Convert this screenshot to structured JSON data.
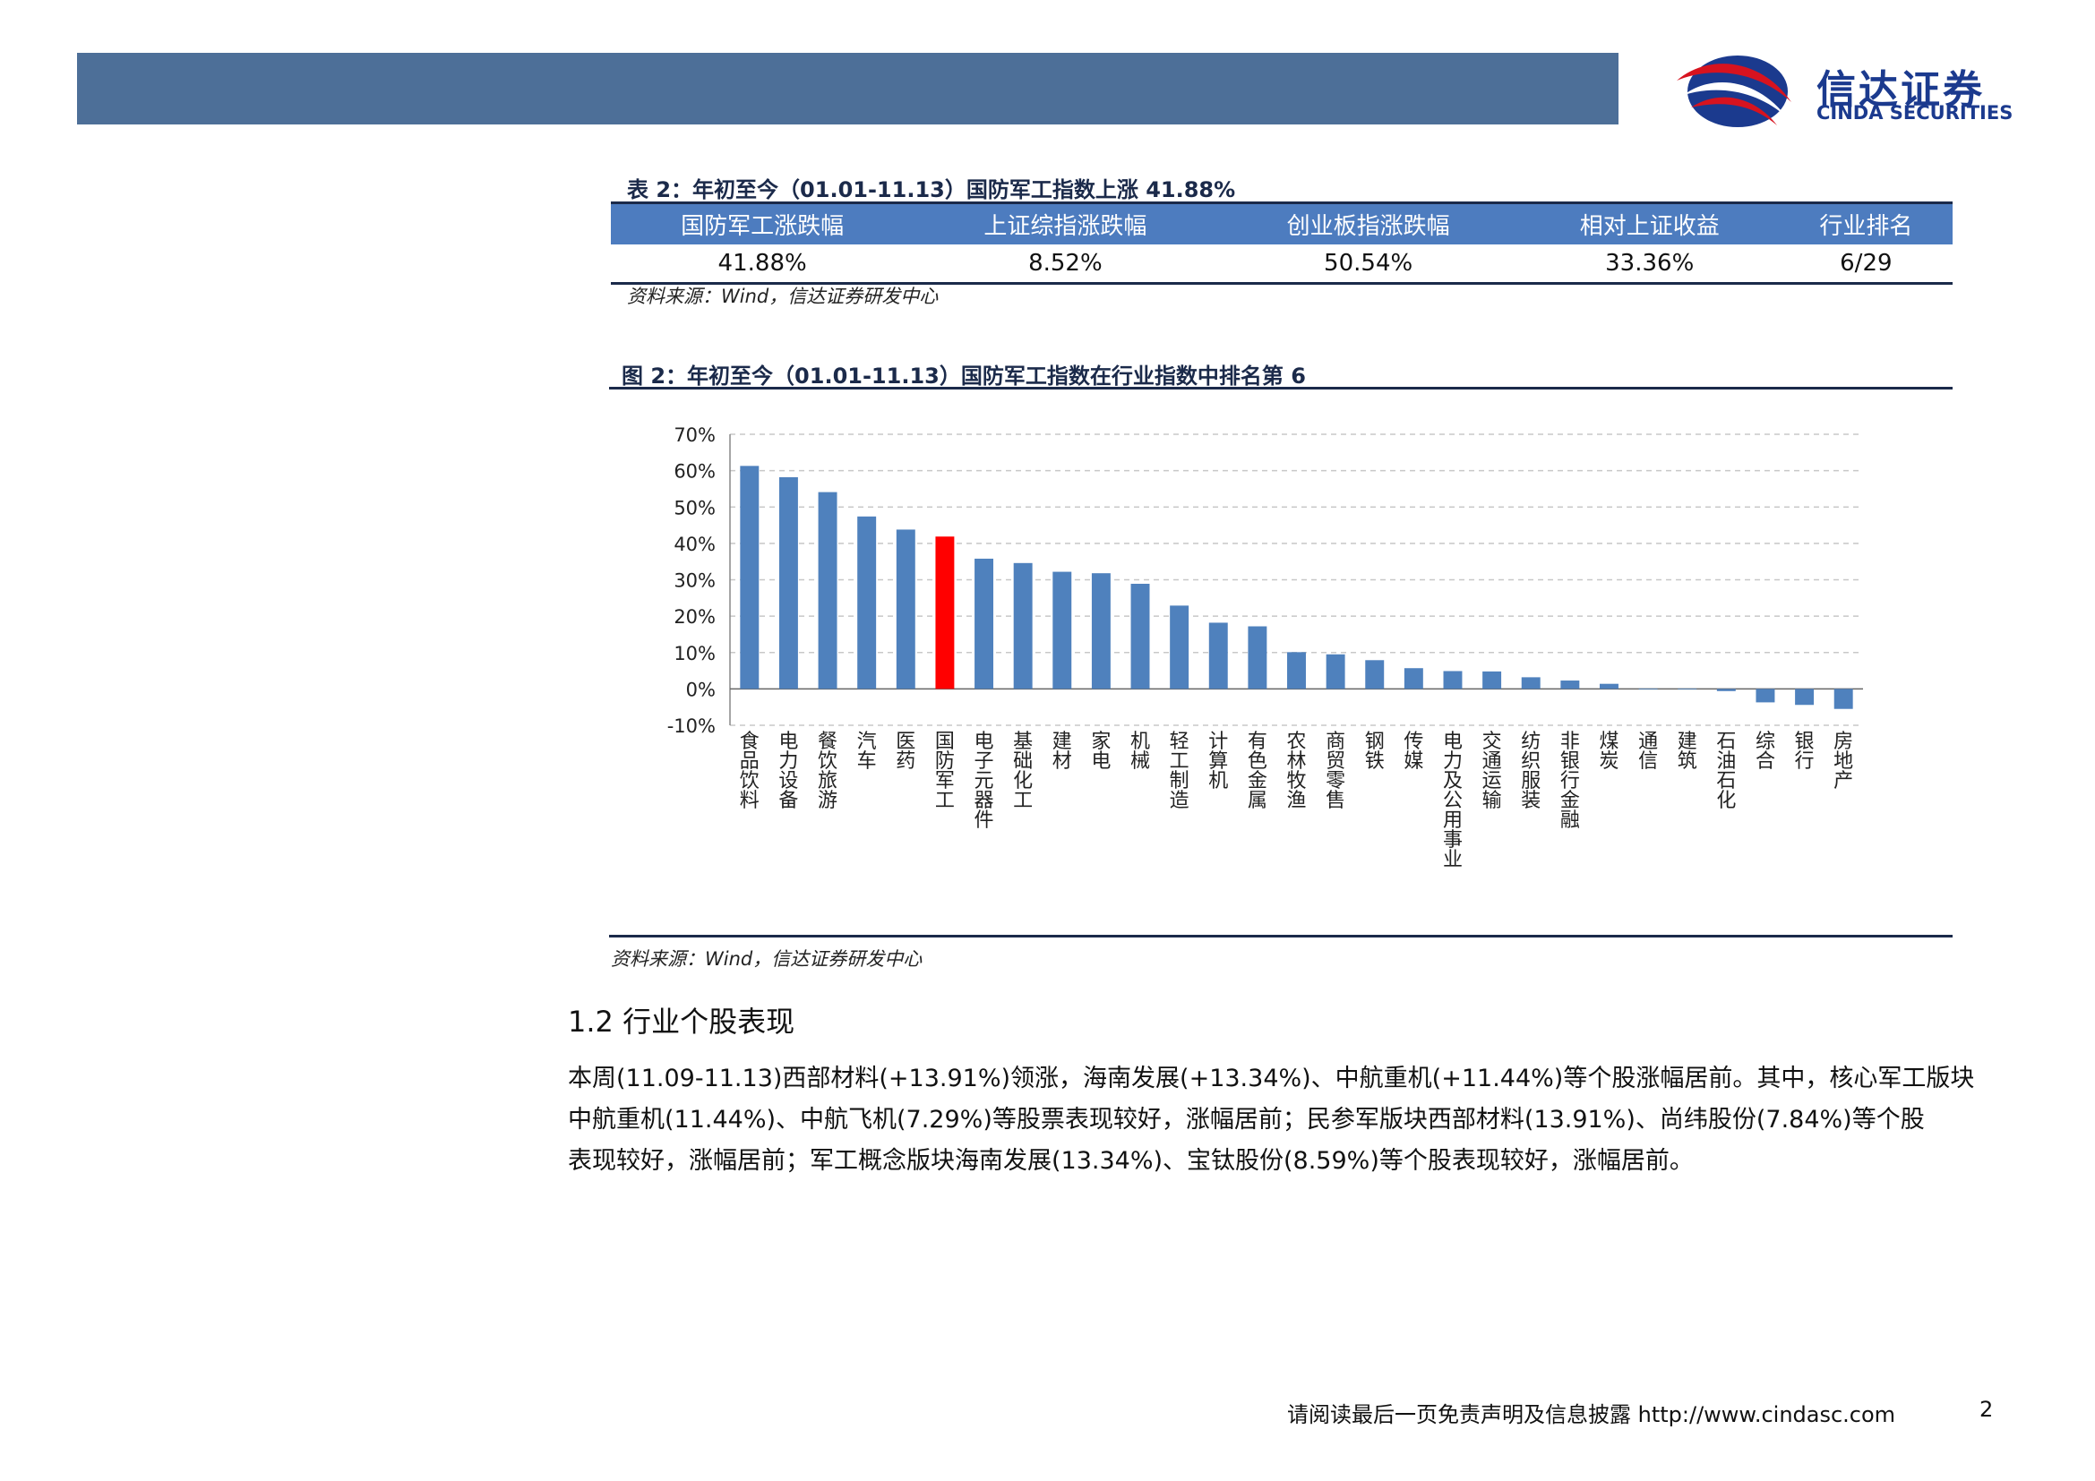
{
  "brand": {
    "name_cn": "信达证券",
    "name_en": "CINDA SECURITIES",
    "colors": {
      "bar": "#4d6f98",
      "red": "#d7131f",
      "navy": "#1b3a8e"
    }
  },
  "table2": {
    "caption": "表 2：年初至今（01.01-11.13）国防军工指数上涨 41.88%",
    "headers": [
      "国防军工涨跌幅",
      "上证综指涨跌幅",
      "创业板指涨跌幅",
      "相对上证收益",
      "行业排名"
    ],
    "values": [
      "41.88%",
      "8.52%",
      "50.54%",
      "33.36%",
      "6/29"
    ],
    "source": "资料来源：Wind，信达证券研发中心"
  },
  "figure2": {
    "caption": "图 2：年初至今（01.01-11.13）国防军工指数在行业指数中排名第 6",
    "source": "资料来源：Wind，信达证券研发中心"
  },
  "chart_data": {
    "type": "bar",
    "title": "",
    "xlabel": "",
    "ylabel": "",
    "ylim": [
      -10,
      70
    ],
    "yticks": [
      "70%",
      "60%",
      "50%",
      "40%",
      "30%",
      "20%",
      "10%",
      "0%",
      "-10%"
    ],
    "grid": true,
    "bar_color": "#4f81bd",
    "highlight_color": "#ff0000",
    "highlight_category": "国防军工",
    "categories": [
      "食品饮料",
      "电力设备",
      "餐饮旅游",
      "汽车",
      "医药",
      "国防军工",
      "电子元器件",
      "基础化工",
      "建材",
      "家电",
      "机械",
      "轻工制造",
      "计算机",
      "有色金属",
      "农林牧渔",
      "商贸零售",
      "钢铁",
      "传媒",
      "电力及公用事业",
      "交通运输",
      "纺织服装",
      "非银行金融",
      "煤炭",
      "通信",
      "建筑",
      "石油石化",
      "综合",
      "银行",
      "房地产"
    ],
    "values": [
      61.3,
      58.2,
      54.1,
      47.4,
      43.8,
      41.88,
      35.8,
      34.6,
      32.2,
      31.8,
      28.9,
      22.9,
      18.2,
      17.2,
      10.1,
      9.5,
      7.9,
      5.7,
      4.9,
      4.8,
      3.2,
      2.3,
      1.4,
      0.1,
      0.1,
      -0.6,
      -3.7,
      -4.4,
      -5.5
    ]
  },
  "section": {
    "title": "1.2 行业个股表现",
    "lines": [
      "本周(11.09-11.13)西部材料(+13.91%)领涨，海南发展(+13.34%)、中航重机(+11.44%)等个股涨幅居前。其中，核心军工版块",
      "中航重机(11.44%)、中航飞机(7.29%)等股票表现较好，涨幅居前；民参军版块西部材料(13.91%)、尚纬股份(7.84%)等个股",
      "表现较好，涨幅居前；军工概念版块海南发展(13.34%)、宝钛股份(8.59%)等个股表现较好，涨幅居前。"
    ]
  },
  "footer": {
    "text": "请阅读最后一页免责声明及信息披露 http://www.cindasc.com",
    "page": "2"
  }
}
